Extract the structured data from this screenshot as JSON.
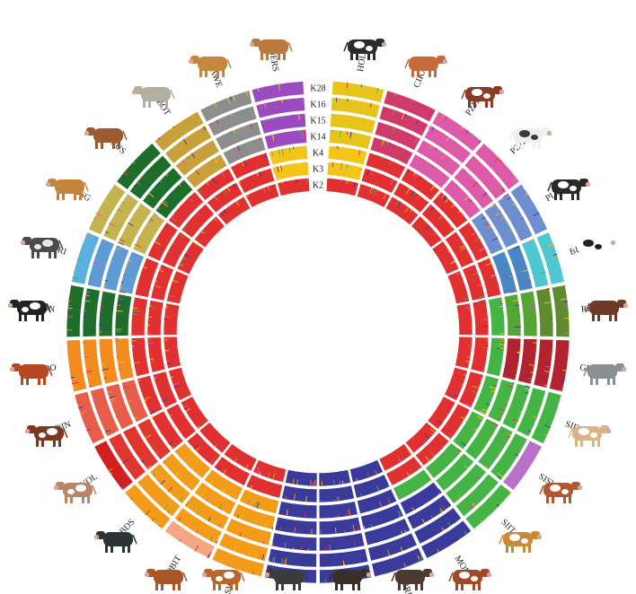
{
  "k_labels": [
    "K28",
    "K16",
    "K15",
    "K14",
    "K4",
    "K3",
    "K2"
  ],
  "breeds": [
    {
      "code": "HOLS",
      "angle": 8,
      "icon": "holstein-cow-icon",
      "cow": {
        "body": "#2b2b2b",
        "patch": "#ffffff"
      }
    },
    {
      "code": "CIKA",
      "angle": 22,
      "icon": "cika-cow-icon",
      "cow": {
        "body": "#c56a3a",
        "patch": ""
      }
    },
    {
      "code": "PZIT",
      "angle": 36,
      "icon": "pzit-cow-icon",
      "cow": {
        "body": "#8a3b22",
        "patch": "#ffffff"
      }
    },
    {
      "code": "PZAU",
      "angle": 50,
      "icon": "pzau-cow-icon",
      "cow": {
        "body": "#efefef",
        "patch": "#3a3a3a"
      }
    },
    {
      "code": "PUST",
      "angle": 64,
      "icon": "pust-cow-icon",
      "cow": {
        "body": "#2a2a2a",
        "patch": "#ffffff"
      }
    },
    {
      "code": "BURL",
      "angle": 78,
      "icon": "burl-cow-icon",
      "cow": {
        "body": "#ffffff",
        "patch": "#222222"
      }
    },
    {
      "code": "REND",
      "angle": 92,
      "icon": "rend-cow-icon",
      "cow": {
        "body": "#6d3a28",
        "patch": ""
      }
    },
    {
      "code": "GRTY",
      "angle": 106,
      "icon": "grty-cow-icon",
      "cow": {
        "body": "#8a8f96",
        "patch": ""
      }
    },
    {
      "code": "SIDE",
      "angle": 120,
      "icon": "side-cow-icon",
      "cow": {
        "body": "#d9b48a",
        "patch": "#ffffff"
      }
    },
    {
      "code": "SISW",
      "angle": 134,
      "icon": "sisw-cow-icon",
      "cow": {
        "body": "#b4562d",
        "patch": "#ffffff"
      }
    },
    {
      "code": "SIIT",
      "angle": 148,
      "icon": "siit-cow-icon",
      "cow": {
        "body": "#c8893a",
        "patch": "#ffffff"
      }
    },
    {
      "code": "MONT",
      "angle": 162,
      "icon": "mont-cow-icon",
      "cow": {
        "body": "#a0482a",
        "patch": "#ffffff"
      }
    },
    {
      "code": "BRDE",
      "angle": 176,
      "icon": "brde-cow-icon",
      "cow": {
        "body": "#4a3a2f",
        "patch": ""
      }
    },
    {
      "code": "BRSW",
      "angle": 190,
      "icon": "brsw-cow-icon",
      "cow": {
        "body": "#3a302a",
        "patch": ""
      }
    },
    {
      "code": "BRIT",
      "angle": 204,
      "icon": "brit-cow-icon",
      "cow": {
        "body": "#3c3b3b",
        "patch": ""
      }
    },
    {
      "code": "OBSW",
      "angle": 218,
      "icon": "obsw-cow-icon",
      "cow": {
        "body": "#b8662a",
        "patch": "#ffffff"
      }
    },
    {
      "code": "OBIT",
      "angle": 232,
      "icon": "obit-cow-icon",
      "cow": {
        "body": "#a9552a",
        "patch": ""
      }
    },
    {
      "code": "OBDS",
      "angle": 246,
      "icon": "obds-cow-icon",
      "cow": {
        "body": "#2d3436",
        "patch": ""
      }
    },
    {
      "code": "EVOL",
      "angle": 260,
      "icon": "evol-cow-icon",
      "cow": {
        "body": "#b98468",
        "patch": "#ffffff"
      }
    },
    {
      "code": "ERIN",
      "angle": 274,
      "icon": "erin-cow-icon",
      "cow": {
        "body": "#7a3a22",
        "patch": "#ffffff"
      }
    },
    {
      "code": "PRDO",
      "angle": 288,
      "icon": "prdo-cow-icon",
      "cow": {
        "body": "#b4481e",
        "patch": ""
      }
    },
    {
      "code": "ABON",
      "angle": 302,
      "icon": "abon-cow-icon",
      "cow": {
        "body": "#222222",
        "patch": "#ffffff"
      }
    },
    {
      "code": "TARI",
      "angle": 316,
      "icon": "tari-cow-icon",
      "cow": {
        "body": "#4b4b4b",
        "patch": "#e8e8e8"
      }
    },
    {
      "code": "VOSG",
      "angle": 330,
      "icon": "vosg-cow-icon",
      "cow": {
        "body": "#c4843a",
        "patch": ""
      }
    },
    {
      "code": "BPUS",
      "angle": 340,
      "icon": "bpus-cow-icon",
      "cow": {
        "body": "#9c5a30",
        "patch": ""
      }
    },
    {
      "code": "VZOT",
      "angle": 348,
      "icon": "vzot-cow-icon",
      "cow": {
        "body": "#b2aea0",
        "patch": ""
      }
    },
    {
      "code": "MAWE",
      "angle": 353,
      "icon": "mawe-cow-icon",
      "cow": {
        "body": "#c4893f",
        "patch": ""
      }
    },
    {
      "code": "JERS",
      "angle": 358,
      "icon": "jers-cow-icon",
      "cow": {
        "body": "#b87a3e",
        "patch": ""
      }
    }
  ],
  "ring_colors": {
    "K2": [
      "#e03030",
      "#e03030",
      "#e03030",
      "#e03030",
      "#e03030",
      "#e03030",
      "#e03030",
      "#e03030",
      "#e03030",
      "#e03030",
      "#e03030",
      "#e03030",
      "#3a3a9a",
      "#3a3a9a",
      "#3a3a9a",
      "#e03030",
      "#e03030",
      "#e03030",
      "#e03030",
      "#e03030",
      "#e03030",
      "#e03030",
      "#e03030",
      "#e03030",
      "#e03030",
      "#e03030",
      "#e03030",
      "#e03030"
    ],
    "K3": [
      "#f2c618",
      "#e03030",
      "#e03030",
      "#e03030",
      "#e03030",
      "#e03030",
      "#e03030",
      "#e03030",
      "#e03030",
      "#e03030",
      "#e03030",
      "#e03030",
      "#3a3a9a",
      "#3a3a9a",
      "#3a3a9a",
      "#e03030",
      "#e03030",
      "#e03030",
      "#e03030",
      "#e03030",
      "#e03030",
      "#e03030",
      "#e03030",
      "#e03030",
      "#e03030",
      "#e03030",
      "#e03030",
      "#f2c618"
    ],
    "K4": [
      "#f2c618",
      "#e03030",
      "#e03030",
      "#e03030",
      "#e03030",
      "#e03030",
      "#44b444",
      "#44b444",
      "#44b444",
      "#44b444",
      "#44b444",
      "#44b444",
      "#3a3a9a",
      "#3a3a9a",
      "#3a3a9a",
      "#f39c1a",
      "#f39c1a",
      "#f39c1a",
      "#e03030",
      "#e03030",
      "#e03030",
      "#e03030",
      "#e03030",
      "#e03030",
      "#e03030",
      "#e03030",
      "#e03030",
      "#f2c618"
    ],
    "K14": [
      "#e6c419",
      "#d03a6a",
      "#dc5aa8",
      "#dc5aa8",
      "#6d8fd0",
      "#4a86c4",
      "#55a533",
      "#b3222f",
      "#44b444",
      "#44b444",
      "#44b444",
      "#3a3a9a",
      "#3a3a9a",
      "#3a3a9a",
      "#3a3a9a",
      "#f39c1a",
      "#f39c1a",
      "#f39c1a",
      "#e0362f",
      "#e85d4a",
      "#f28c1e",
      "#1c6e2a",
      "#5e9ad3",
      "#c4b34e",
      "#1c6e2a",
      "#c8a03a",
      "#8d8d8d",
      "#9a4bc0"
    ],
    "K15": [
      "#e6c419",
      "#d03a6a",
      "#dc5aa8",
      "#dc5aa8",
      "#6d8fd0",
      "#4a86c4",
      "#55a533",
      "#b3222f",
      "#44b444",
      "#44b444",
      "#44b444",
      "#3a3a9a",
      "#3a3a9a",
      "#3a3a9a",
      "#3a3a9a",
      "#f39c1a",
      "#f39c1a",
      "#f39c1a",
      "#e0362f",
      "#e85d4a",
      "#f28c1e",
      "#1c6e2a",
      "#5e9ad3",
      "#c4b34e",
      "#1c6e2a",
      "#c8a03a",
      "#8d8d8d",
      "#9a4bc0"
    ],
    "K16": [
      "#e6c419",
      "#d03a6a",
      "#dc5aa8",
      "#dc5aa8",
      "#6d8fd0",
      "#4fc7d2",
      "#5f8a2e",
      "#b3222f",
      "#44b444",
      "#44b444",
      "#44b444",
      "#3a3a9a",
      "#3a3a9a",
      "#3a3a9a",
      "#3a3a9a",
      "#f39c1a",
      "#f39c1a",
      "#f39c1a",
      "#e0362f",
      "#e85d4a",
      "#f28c1e",
      "#1c6e2a",
      "#5e9ad3",
      "#c4b34e",
      "#1c6e2a",
      "#c8a03a",
      "#8d8d8d",
      "#9a4bc0"
    ],
    "K28": [
      "#e6c419",
      "#d03a6a",
      "#dc5aa8",
      "#dc5aa8",
      "#6d8fd0",
      "#4fc7d2",
      "#5f8a2e",
      "#b3222f",
      "#44b444",
      "#b870c8",
      "#44b444",
      "#3a3a9a",
      "#3a3a9a",
      "#3a3a9a",
      "#3a3a9a",
      "#f39c1a",
      "#f2a882",
      "#f39c1a",
      "#d02020",
      "#e85d4a",
      "#f28c1e",
      "#1c6e2a",
      "#5ab0e0",
      "#c4b34e",
      "#1c6e2a",
      "#c8a03a",
      "#8d8d8d",
      "#9a4bc0"
    ]
  },
  "speckle_colors": [
    "#f2c618",
    "#3a3a9a",
    "#44b444",
    "#e03030",
    "#dc5aa8",
    "#f39c1a"
  ]
}
